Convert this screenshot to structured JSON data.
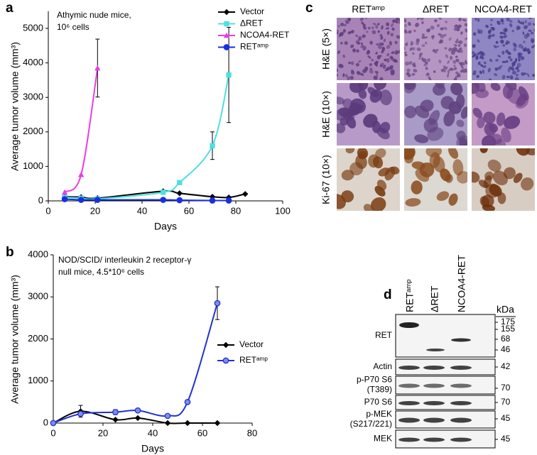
{
  "panels": {
    "a": "a",
    "b": "b",
    "c": "c",
    "d": "d"
  },
  "chart_data": [
    {
      "type": "line",
      "xlabel": "Days",
      "ylabel": "Average tumor volume (mm³)",
      "annotation": [
        "Athymic nude mice,",
        "10⁶ cells"
      ],
      "xlim": [
        0,
        100
      ],
      "xticks": [
        0,
        20,
        40,
        60,
        80,
        100
      ],
      "ylim": [
        0,
        5500
      ],
      "yticks": [
        0,
        1000,
        2000,
        3000,
        4000,
        5000
      ],
      "series": [
        {
          "name": "Vector",
          "color": "#000000",
          "marker": "diamond",
          "x": [
            7,
            14,
            21,
            49,
            56,
            70,
            77,
            84
          ],
          "values": [
            120,
            110,
            80,
            280,
            220,
            120,
            100,
            200
          ],
          "errors": [
            null,
            null,
            null,
            null,
            null,
            null,
            null,
            null
          ]
        },
        {
          "name": "ΔRET",
          "color": "#4fdfe0",
          "marker": "square",
          "x": [
            7,
            14,
            21,
            49,
            56,
            70,
            77
          ],
          "values": [
            100,
            80,
            60,
            250,
            530,
            1600,
            3650
          ],
          "errors": [
            null,
            null,
            null,
            null,
            null,
            400,
            1380
          ]
        },
        {
          "name": "NCOA4-RET",
          "color": "#e83ee0",
          "marker": "triangle",
          "x": [
            7,
            14,
            21
          ],
          "values": [
            250,
            760,
            3850
          ],
          "errors": [
            null,
            null,
            840
          ]
        },
        {
          "name": "RETᵃᵐᵖ",
          "color": "#1a2fe0",
          "marker": "circle",
          "x": [
            7,
            14,
            21,
            49,
            56,
            70,
            77
          ],
          "values": [
            50,
            30,
            30,
            30,
            20,
            10,
            10
          ],
          "errors": [
            null,
            null,
            null,
            null,
            null,
            null,
            null
          ]
        }
      ]
    },
    {
      "type": "line",
      "xlabel": "Days",
      "ylabel": "Average tumor volume (mm³)",
      "annotation": [
        "NOD/SCID/ interleukin 2 receptor-γ",
        "null mice, 4.5*10⁶ cells"
      ],
      "xlim": [
        0,
        80
      ],
      "xticks": [
        0,
        20,
        40,
        60,
        80
      ],
      "ylim": [
        0,
        4000
      ],
      "yticks": [
        0,
        1000,
        2000,
        3000,
        4000
      ],
      "series": [
        {
          "name": "Vector",
          "color": "#000000",
          "marker": "diamond",
          "x": [
            0,
            11,
            25,
            34,
            46,
            54,
            66
          ],
          "values": [
            0,
            280,
            80,
            120,
            0,
            0,
            0
          ],
          "errors": [
            null,
            140,
            null,
            null,
            null,
            null,
            null
          ]
        },
        {
          "name": "RETᵃᵐᵖ",
          "color": "#2233cc",
          "marker": "circle",
          "x": [
            0,
            11,
            25,
            34,
            46,
            54,
            66
          ],
          "values": [
            0,
            220,
            260,
            300,
            170,
            500,
            2850
          ],
          "errors": [
            null,
            null,
            60,
            null,
            null,
            null,
            390
          ]
        }
      ]
    }
  ],
  "histology": {
    "columns": [
      "RETᵃᵐᵖ",
      "ΔRET",
      "NCOA4-RET"
    ],
    "rows": [
      "H&E (5×)",
      "H&E (10×)",
      "Ki-67 (10×)"
    ]
  },
  "western_blot": {
    "lanes": [
      "RETᵃᵐᵖ",
      "ΔRET",
      "NCOA4-RET"
    ],
    "unit": "kDa",
    "rows": [
      {
        "label": [
          "RET"
        ],
        "markers": [
          175,
          155,
          68,
          46
        ]
      },
      {
        "label": [
          "Actin"
        ],
        "markers": [
          42
        ]
      },
      {
        "label": [
          "p-P70 S6",
          "(T389)"
        ],
        "markers": [
          70
        ]
      },
      {
        "label": [
          "P70 S6"
        ],
        "markers": [
          70
        ]
      },
      {
        "label": [
          "p-MEK",
          "(S217/221)"
        ],
        "markers": [
          45
        ]
      },
      {
        "label": [
          "MEK"
        ],
        "markers": [
          45
        ]
      }
    ]
  }
}
